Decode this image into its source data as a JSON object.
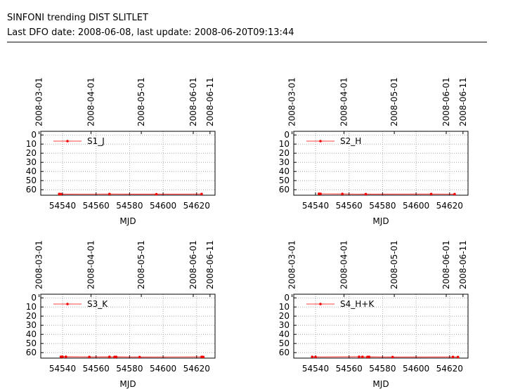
{
  "header": {
    "title": "SINFONI trending DIST SLITLET",
    "subtitle": "Last DFO date: 2008-06-08, last update: 2008-06-20T09:13:44"
  },
  "chart_data": [
    {
      "type": "line",
      "xlabel": "MJD",
      "xlim": [
        54527,
        54631
      ],
      "ylim": [
        66,
        -4
      ],
      "xticks": [
        54540,
        54560,
        54580,
        54600,
        54620
      ],
      "yticks": [
        0,
        10,
        20,
        30,
        40,
        50,
        60
      ],
      "x2ticks": [
        {
          "value": 54526,
          "label": "2008-03-01"
        },
        {
          "value": 54557,
          "label": "2008-04-01"
        },
        {
          "value": 54587,
          "label": "2008-05-01"
        },
        {
          "value": 54618,
          "label": "2008-06-01"
        },
        {
          "value": 54628,
          "label": "2008-06-11"
        }
      ],
      "grid": true,
      "x": [
        54538,
        54539,
        54568,
        54596,
        54623
      ],
      "series": [
        {
          "name": "S1_J",
          "color": "#ff0000",
          "values": [
            64.6,
            64.8,
            64.7,
            64.9,
            64.7
          ]
        }
      ]
    },
    {
      "type": "line",
      "xlabel": "MJD",
      "xlim": [
        54527,
        54631
      ],
      "ylim": [
        66,
        -4
      ],
      "xticks": [
        54540,
        54560,
        54580,
        54600,
        54620
      ],
      "yticks": [
        0,
        10,
        20,
        30,
        40,
        50,
        60
      ],
      "x2ticks": [
        {
          "value": 54526,
          "label": "2008-03-01"
        },
        {
          "value": 54557,
          "label": "2008-04-01"
        },
        {
          "value": 54587,
          "label": "2008-05-01"
        },
        {
          "value": 54618,
          "label": "2008-06-01"
        },
        {
          "value": 54628,
          "label": "2008-06-11"
        }
      ],
      "grid": true,
      "x": [
        54542,
        54543,
        54556,
        54570,
        54609,
        54623
      ],
      "series": [
        {
          "name": "S2_H",
          "color": "#ff0000",
          "values": [
            64.4,
            64.5,
            64.6,
            64.8,
            64.7,
            64.8
          ]
        }
      ]
    },
    {
      "type": "line",
      "xlabel": "MJD",
      "xlim": [
        54527,
        54631
      ],
      "ylim": [
        66,
        -4
      ],
      "xticks": [
        54540,
        54560,
        54580,
        54600,
        54620
      ],
      "yticks": [
        0,
        10,
        20,
        30,
        40,
        50,
        60
      ],
      "x2ticks": [
        {
          "value": 54526,
          "label": "2008-03-01"
        },
        {
          "value": 54557,
          "label": "2008-04-01"
        },
        {
          "value": 54587,
          "label": "2008-05-01"
        },
        {
          "value": 54618,
          "label": "2008-06-01"
        },
        {
          "value": 54628,
          "label": "2008-06-11"
        }
      ],
      "grid": true,
      "x": [
        54539,
        54540,
        54542,
        54556,
        54568,
        54571,
        54572,
        54586,
        54623,
        54624
      ],
      "series": [
        {
          "name": "S3_K",
          "color": "#ff0000",
          "values": [
            64.5,
            64.6,
            64.5,
            64.7,
            64.6,
            64.7,
            64.6,
            64.8,
            64.6,
            64.7
          ]
        }
      ]
    },
    {
      "type": "line",
      "xlabel": "MJD",
      "xlim": [
        54527,
        54631
      ],
      "ylim": [
        66,
        -4
      ],
      "xticks": [
        54540,
        54560,
        54580,
        54600,
        54620
      ],
      "yticks": [
        0,
        10,
        20,
        30,
        40,
        50,
        60
      ],
      "x2ticks": [
        {
          "value": 54526,
          "label": "2008-03-01"
        },
        {
          "value": 54557,
          "label": "2008-04-01"
        },
        {
          "value": 54587,
          "label": "2008-05-01"
        },
        {
          "value": 54618,
          "label": "2008-06-01"
        },
        {
          "value": 54628,
          "label": "2008-06-11"
        }
      ],
      "grid": true,
      "x": [
        54538,
        54540,
        54566,
        54568,
        54571,
        54572,
        54586,
        54622,
        54625
      ],
      "series": [
        {
          "name": "S4_H+K",
          "color": "#ff0000",
          "values": [
            64.6,
            64.7,
            64.5,
            64.6,
            64.7,
            64.6,
            64.8,
            64.7,
            64.8
          ]
        }
      ]
    }
  ]
}
